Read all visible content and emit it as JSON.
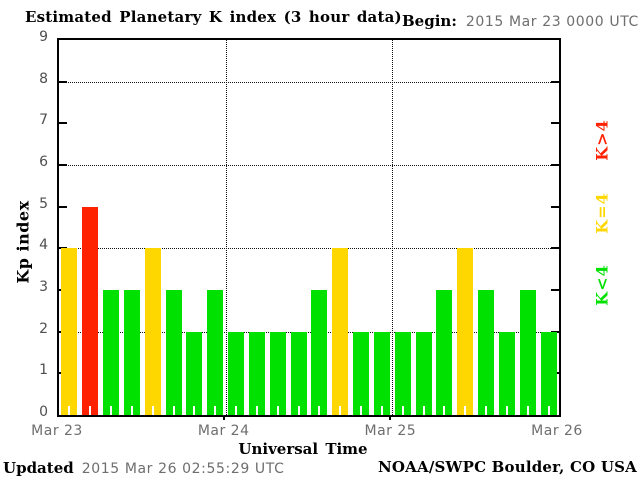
{
  "header": {
    "title": "Estimated Planetary K index (3 hour data)",
    "begin_label": "Begin:",
    "begin_value": "2015 Mar 23 0000 UTC"
  },
  "chart_data": {
    "type": "bar",
    "title": "Estimated Planetary K index (3 hour data)",
    "xlabel": "Universal Time",
    "ylabel": "Kp index",
    "ylim": [
      0,
      9
    ],
    "yticks": [
      0,
      1,
      2,
      3,
      4,
      5,
      6,
      7,
      8,
      9
    ],
    "grid_kp": [
      2,
      4,
      6,
      8
    ],
    "grid": "dotted",
    "bar_interval_hours": 3,
    "xticklabels": [
      "Mar 23",
      "Mar 24",
      "Mar 25",
      "Mar 26"
    ],
    "days": [
      {
        "date": "Mar 23",
        "values": [
          4,
          5,
          3,
          3,
          4,
          3,
          2,
          3
        ]
      },
      {
        "date": "Mar 24",
        "values": [
          2,
          2,
          2,
          2,
          3,
          4,
          2,
          2
        ]
      },
      {
        "date": "Mar 25",
        "values": [
          2,
          2,
          3,
          4,
          3,
          2,
          3,
          2
        ]
      }
    ],
    "color_rules": {
      "below_4": "#00e100",
      "equal_4": "#ffd700",
      "above_4": "#ff2200"
    },
    "legend_position": "right"
  },
  "legend": {
    "items": [
      {
        "label": "K>4",
        "color": "#ff2200"
      },
      {
        "label": "K=4",
        "color": "#ffd700"
      },
      {
        "label": "K<4",
        "color": "#00e100"
      }
    ]
  },
  "footer": {
    "updated_label": "Updated",
    "updated_value": "2015 Mar 26 02:55:29 UTC",
    "source": "NOAA/SWPC Boulder, CO USA"
  }
}
